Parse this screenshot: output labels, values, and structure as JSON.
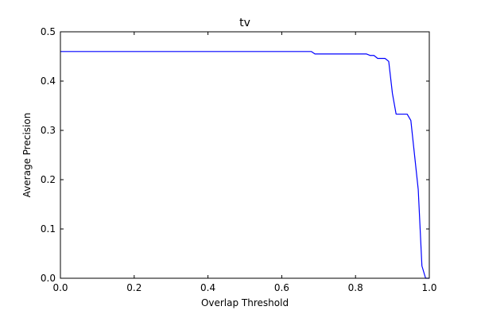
{
  "chart_data": {
    "type": "line",
    "title": "tv",
    "xlabel": "Overlap Threshold",
    "ylabel": "Average Precision",
    "xlim": [
      0.0,
      1.0
    ],
    "ylim": [
      0.0,
      0.5
    ],
    "xticks": [
      "0.0",
      "0.2",
      "0.4",
      "0.6",
      "0.8",
      "1.0"
    ],
    "yticks": [
      "0.0",
      "0.1",
      "0.2",
      "0.3",
      "0.4",
      "0.5"
    ],
    "grid": false,
    "series": [
      {
        "color": "#0000ff",
        "x": [
          0.0,
          0.68,
          0.69,
          0.7,
          0.83,
          0.84,
          0.85,
          0.86,
          0.87,
          0.88,
          0.89,
          0.9,
          0.91,
          0.92,
          0.93,
          0.94,
          0.95,
          0.96,
          0.97,
          0.98,
          0.99,
          1.0
        ],
        "y": [
          0.46,
          0.46,
          0.455,
          0.455,
          0.455,
          0.452,
          0.452,
          0.446,
          0.446,
          0.446,
          0.44,
          0.375,
          0.333,
          0.333,
          0.333,
          0.333,
          0.32,
          0.25,
          0.18,
          0.025,
          0.0,
          0.0
        ]
      }
    ]
  }
}
